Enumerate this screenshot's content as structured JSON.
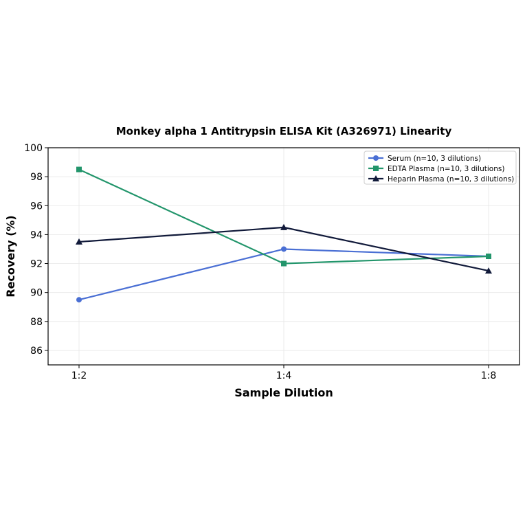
{
  "chart_data": {
    "type": "line",
    "title": "Monkey alpha 1 Antitrypsin ELISA Kit (A326971) Linearity",
    "xlabel": "Sample Dilution",
    "ylabel": "Recovery (%)",
    "categories": [
      "1:2",
      "1:4",
      "1:8"
    ],
    "ylim": [
      85,
      100
    ],
    "yticks": [
      86,
      88,
      90,
      92,
      94,
      96,
      98,
      100
    ],
    "grid": true,
    "legend_position": "top-right",
    "series": [
      {
        "name": "Serum (n=10, 3 dilutions)",
        "values": [
          89.5,
          93.0,
          92.5
        ],
        "color": "#4a6fd4",
        "marker": "circle"
      },
      {
        "name": "EDTA Plasma (n=10, 3 dilutions)",
        "values": [
          98.5,
          92.0,
          92.5
        ],
        "color": "#22956b",
        "marker": "square"
      },
      {
        "name": "Heparin Plasma (n=10, 3 dilutions)",
        "values": [
          93.5,
          94.5,
          91.5
        ],
        "color": "#111a3a",
        "marker": "triangle"
      }
    ]
  }
}
